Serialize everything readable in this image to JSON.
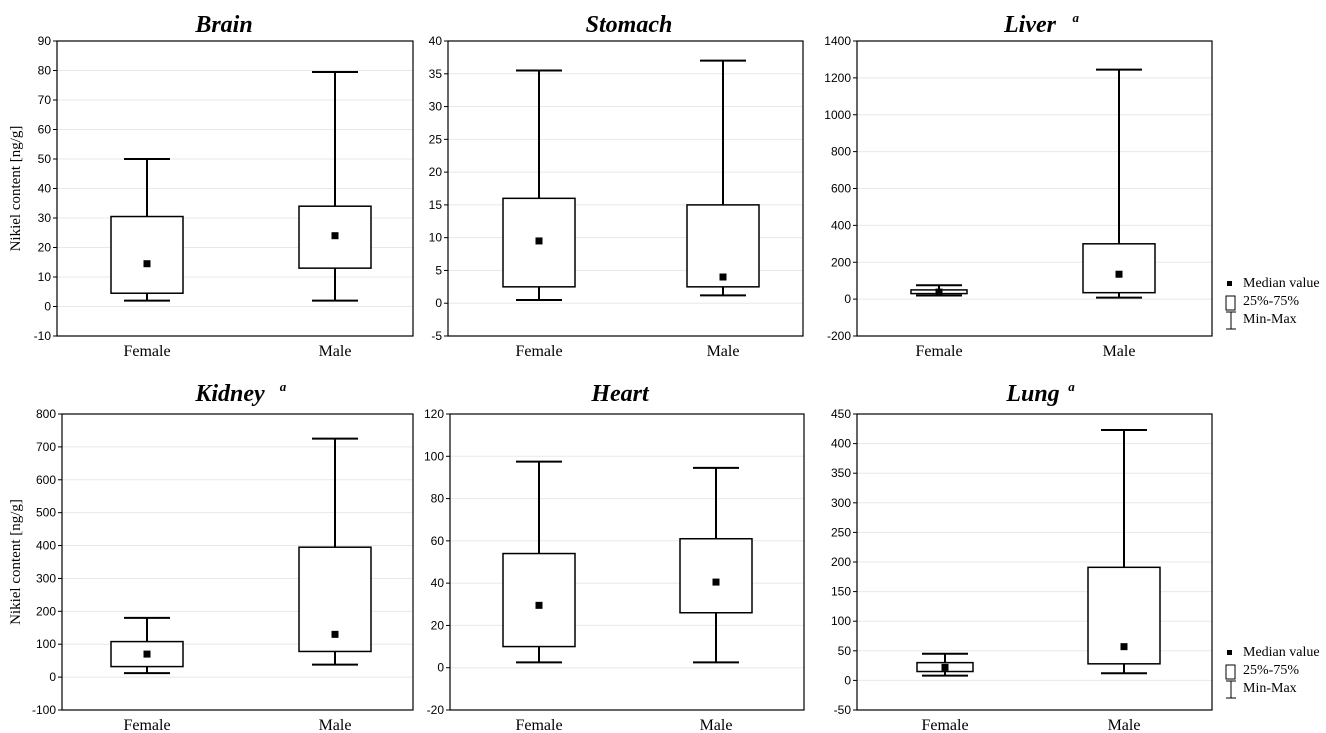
{
  "chart_data": [
    {
      "type": "boxplot",
      "title": "Brain",
      "title_sup": "",
      "ylabel": "Nikiel content [ng/g]",
      "ylim": [
        -10,
        90
      ],
      "yticks": [
        -10,
        0,
        10,
        20,
        30,
        40,
        50,
        60,
        70,
        80,
        90
      ],
      "categories": [
        "Female",
        "Male"
      ],
      "boxes": [
        {
          "min": 2,
          "q1": 4.5,
          "median": 14.5,
          "q3": 30.5,
          "max": 50
        },
        {
          "min": 2,
          "q1": 13,
          "median": 24,
          "q3": 34,
          "max": 79.5
        }
      ]
    },
    {
      "type": "boxplot",
      "title": "Stomach",
      "title_sup": "",
      "ylabel": "",
      "ylim": [
        -5,
        40
      ],
      "yticks": [
        -5,
        0,
        5,
        10,
        15,
        20,
        25,
        30,
        35,
        40
      ],
      "categories": [
        "Female",
        "Male"
      ],
      "boxes": [
        {
          "min": 0.5,
          "q1": 2.5,
          "median": 9.5,
          "q3": 16,
          "max": 35.5
        },
        {
          "min": 1.2,
          "q1": 2.5,
          "median": 4,
          "q3": 15,
          "max": 37
        }
      ]
    },
    {
      "type": "boxplot",
      "title": "Liver",
      "title_sup": "a",
      "ylabel": "",
      "ylim": [
        -200,
        1400
      ],
      "yticks": [
        -200,
        0,
        200,
        400,
        600,
        800,
        1000,
        1200,
        1400
      ],
      "categories": [
        "Female",
        "Male"
      ],
      "boxes": [
        {
          "min": 20,
          "q1": 30,
          "median": 38,
          "q3": 50,
          "max": 75
        },
        {
          "min": 8,
          "q1": 35,
          "median": 135,
          "q3": 300,
          "max": 1245
        }
      ]
    },
    {
      "type": "boxplot",
      "title": "Kidney",
      "title_sup": "a",
      "ylabel": "Nikiel content [ng/g]",
      "ylim": [
        -100,
        800
      ],
      "yticks": [
        -100,
        0,
        100,
        200,
        300,
        400,
        500,
        600,
        700,
        800
      ],
      "categories": [
        "Female",
        "Male"
      ],
      "boxes": [
        {
          "min": 12,
          "q1": 32,
          "median": 70,
          "q3": 108,
          "max": 180
        },
        {
          "min": 38,
          "q1": 78,
          "median": 130,
          "q3": 395,
          "max": 725
        }
      ]
    },
    {
      "type": "boxplot",
      "title": "Heart",
      "title_sup": "",
      "ylabel": "",
      "ylim": [
        -20,
        120
      ],
      "yticks": [
        -20,
        0,
        20,
        40,
        60,
        80,
        100,
        120
      ],
      "categories": [
        "Female",
        "Male"
      ],
      "boxes": [
        {
          "min": 2.5,
          "q1": 10,
          "median": 29.5,
          "q3": 54,
          "max": 97.5
        },
        {
          "min": 2.5,
          "q1": 26,
          "median": 40.5,
          "q3": 61,
          "max": 94.5
        }
      ]
    },
    {
      "type": "boxplot",
      "title": "Lung",
      "title_sup": "a",
      "ylabel": "",
      "ylim": [
        -50,
        450
      ],
      "yticks": [
        -50,
        0,
        50,
        100,
        150,
        200,
        250,
        300,
        350,
        400,
        450
      ],
      "categories": [
        "Female",
        "Male"
      ],
      "boxes": [
        {
          "min": 8,
          "q1": 15,
          "median": 22,
          "q3": 30,
          "max": 45
        },
        {
          "min": 12,
          "q1": 28,
          "median": 57,
          "q3": 191,
          "max": 423
        }
      ]
    }
  ],
  "legend": {
    "median": "Median value",
    "box": "25%-75%",
    "whisker": "Min-Max"
  }
}
